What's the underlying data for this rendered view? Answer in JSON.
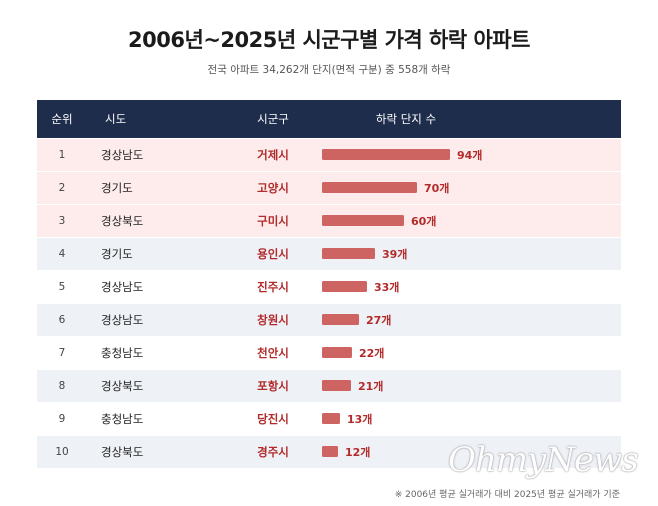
{
  "title": "2006년~2025년 시군구별 가격 하락 아파트",
  "subtitle": "전국 아파트 34,262개 단지(면적 구분) 중 558개 하락",
  "headers": {
    "rank": "순위",
    "sido": "시도",
    "sigungu": "시군구",
    "count": "하락 단지 수"
  },
  "chart_data": {
    "type": "bar",
    "orientation": "horizontal",
    "title": "2006년~2025년 시군구별 가격 하락 아파트",
    "subtitle": "전국 아파트 34,262개 단지(면적 구분) 중 558개 하락",
    "categories": [
      "거제시",
      "고양시",
      "구미시",
      "용인시",
      "진주시",
      "창원시",
      "천안시",
      "포항시",
      "당진시",
      "경주시"
    ],
    "values": [
      94,
      70,
      60,
      39,
      33,
      27,
      22,
      21,
      13,
      12
    ],
    "value_labels": [
      "94개",
      "70개",
      "60개",
      "39개",
      "33개",
      "27개",
      "22개",
      "21개",
      "13개",
      "12개"
    ],
    "bar_color": "#cd6461",
    "value_label_color": "#b22b2b",
    "rows": [
      {
        "rank": "1",
        "sido": "경상남도",
        "sigungu": "거제시",
        "label": "94개"
      },
      {
        "rank": "2",
        "sido": "경기도",
        "sigungu": "고양시",
        "label": "70개"
      },
      {
        "rank": "3",
        "sido": "경상북도",
        "sigungu": "구미시",
        "label": "60개"
      },
      {
        "rank": "4",
        "sido": "경기도",
        "sigungu": "용인시",
        "label": "39개"
      },
      {
        "rank": "5",
        "sido": "경상남도",
        "sigungu": "진주시",
        "label": "33개"
      },
      {
        "rank": "6",
        "sido": "경상남도",
        "sigungu": "창원시",
        "label": "27개"
      },
      {
        "rank": "7",
        "sido": "충청남도",
        "sigungu": "천안시",
        "label": "22개"
      },
      {
        "rank": "8",
        "sido": "경상북도",
        "sigungu": "포항시",
        "label": "21개"
      },
      {
        "rank": "9",
        "sido": "충청남도",
        "sigungu": "당진시",
        "label": "13개"
      },
      {
        "rank": "10",
        "sido": "경상북도",
        "sigungu": "경주시",
        "label": "12개"
      }
    ]
  },
  "colors": {
    "header_bg": "#1f2d4d",
    "top3_row_bg": "#fdeceb",
    "alt_row_bg": "#eef1f6"
  },
  "note": "※ 2006년 평균 실거래가 대비 2025년 평균 실거래가 기준",
  "watermark": "OhmyNews"
}
